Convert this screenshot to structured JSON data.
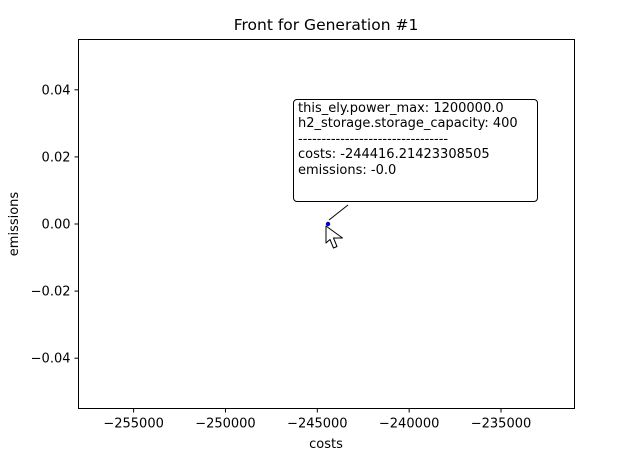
{
  "chart_data": {
    "type": "scatter",
    "title": "Front for Generation #1",
    "xlabel": "costs",
    "ylabel": "emissions",
    "xlim": [
      -258000,
      -231000
    ],
    "ylim": [
      -0.055,
      0.055
    ],
    "xticks": [
      -255000,
      -250000,
      -245000,
      -240000,
      -235000
    ],
    "xtick_labels": [
      "−255000",
      "−250000",
      "−245000",
      "−240000",
      "−235000"
    ],
    "yticks": [
      0.04,
      0.02,
      0.0,
      -0.02,
      -0.04
    ],
    "ytick_labels": [
      "0.04",
      "0.02",
      "0.00",
      "−0.02",
      "−0.04"
    ],
    "grid": false,
    "points": [
      {
        "x": -244416.21423308505,
        "y": 0.0
      }
    ],
    "point_color": "#0000cc"
  },
  "tooltip": {
    "lines": [
      "this_ely.power_max: 1200000.0",
      "h2_storage.storage_capacity: 400",
      "--------------------------------",
      "costs: -244416.21423308505",
      "emissions: -0.0"
    ]
  }
}
